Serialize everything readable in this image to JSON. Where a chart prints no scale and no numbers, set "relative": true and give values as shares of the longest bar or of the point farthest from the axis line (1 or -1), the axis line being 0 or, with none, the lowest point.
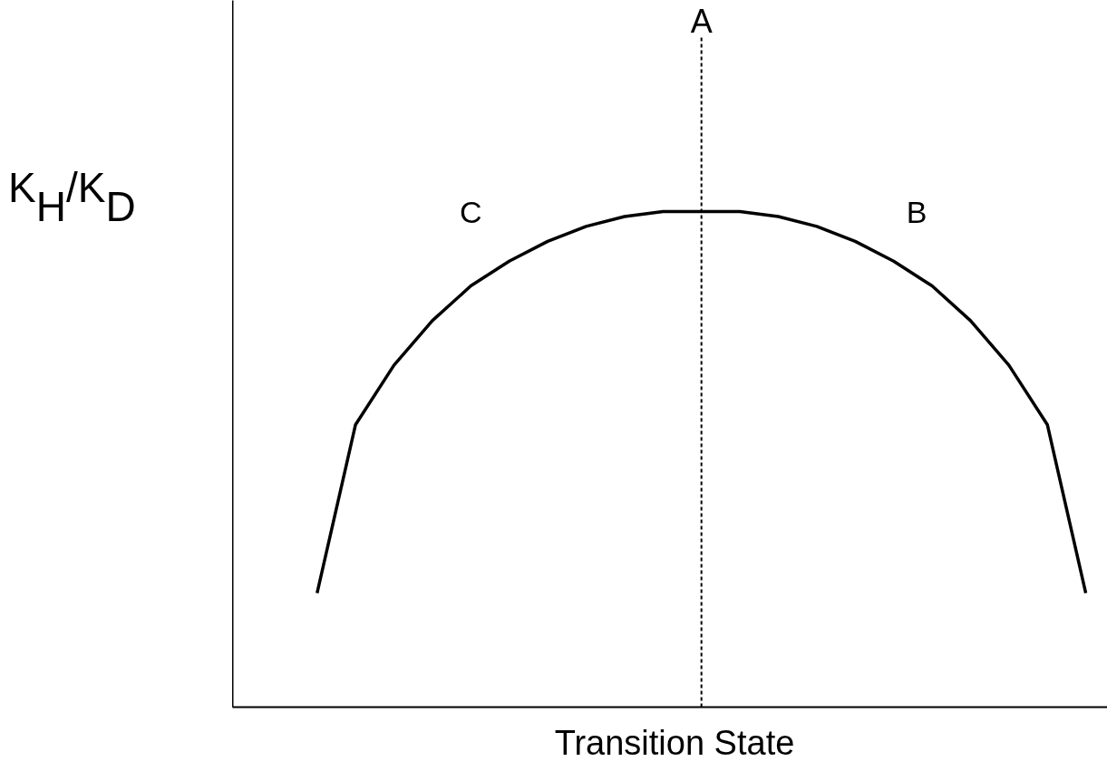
{
  "chart_data": {
    "type": "line",
    "relative": true,
    "xlabel": "Transition State",
    "ylabel": "K$_{H}$/K$_{D}$",
    "categories": [
      null,
      null,
      null,
      null,
      null,
      null,
      null,
      null,
      null,
      null,
      null,
      null,
      null,
      null,
      null,
      null,
      null,
      null,
      null,
      null,
      null
    ],
    "series": [
      {
        "color": "#000000",
        "values": [
          0.23,
          0.57,
          0.69,
          0.78,
          0.85,
          0.9,
          0.94,
          0.97,
          0.99,
          1.0,
          1.0,
          1.0,
          0.99,
          0.97,
          0.94,
          0.9,
          0.85,
          0.78,
          0.69,
          0.57,
          0.23
        ]
      }
    ],
    "annotations": [
      "A",
      "C",
      "B"
    ],
    "grid": false
  }
}
